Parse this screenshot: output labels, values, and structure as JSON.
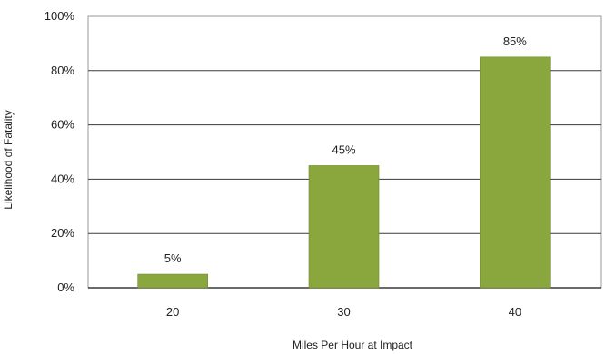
{
  "chart_data": {
    "type": "bar",
    "categories": [
      "20",
      "30",
      "40"
    ],
    "values": [
      5,
      45,
      85
    ],
    "data_labels": [
      "5%",
      "45%",
      "85%"
    ],
    "xlabel": "Miles Per Hour at Impact",
    "ylabel": "Likelihood  of Fatality",
    "ylim": [
      0,
      100
    ],
    "yticks": [
      0,
      20,
      40,
      60,
      80,
      100
    ],
    "ytick_labels": [
      "0%",
      "20%",
      "40%",
      "60%",
      "80%",
      "100%"
    ],
    "grid": true,
    "legend": "none",
    "colors": {
      "bar": "#8aa73d",
      "bar_edge": "#6f8a2c",
      "grid": "#3a3a3a",
      "frame": "#9a9a9a",
      "text": "#222222"
    }
  }
}
